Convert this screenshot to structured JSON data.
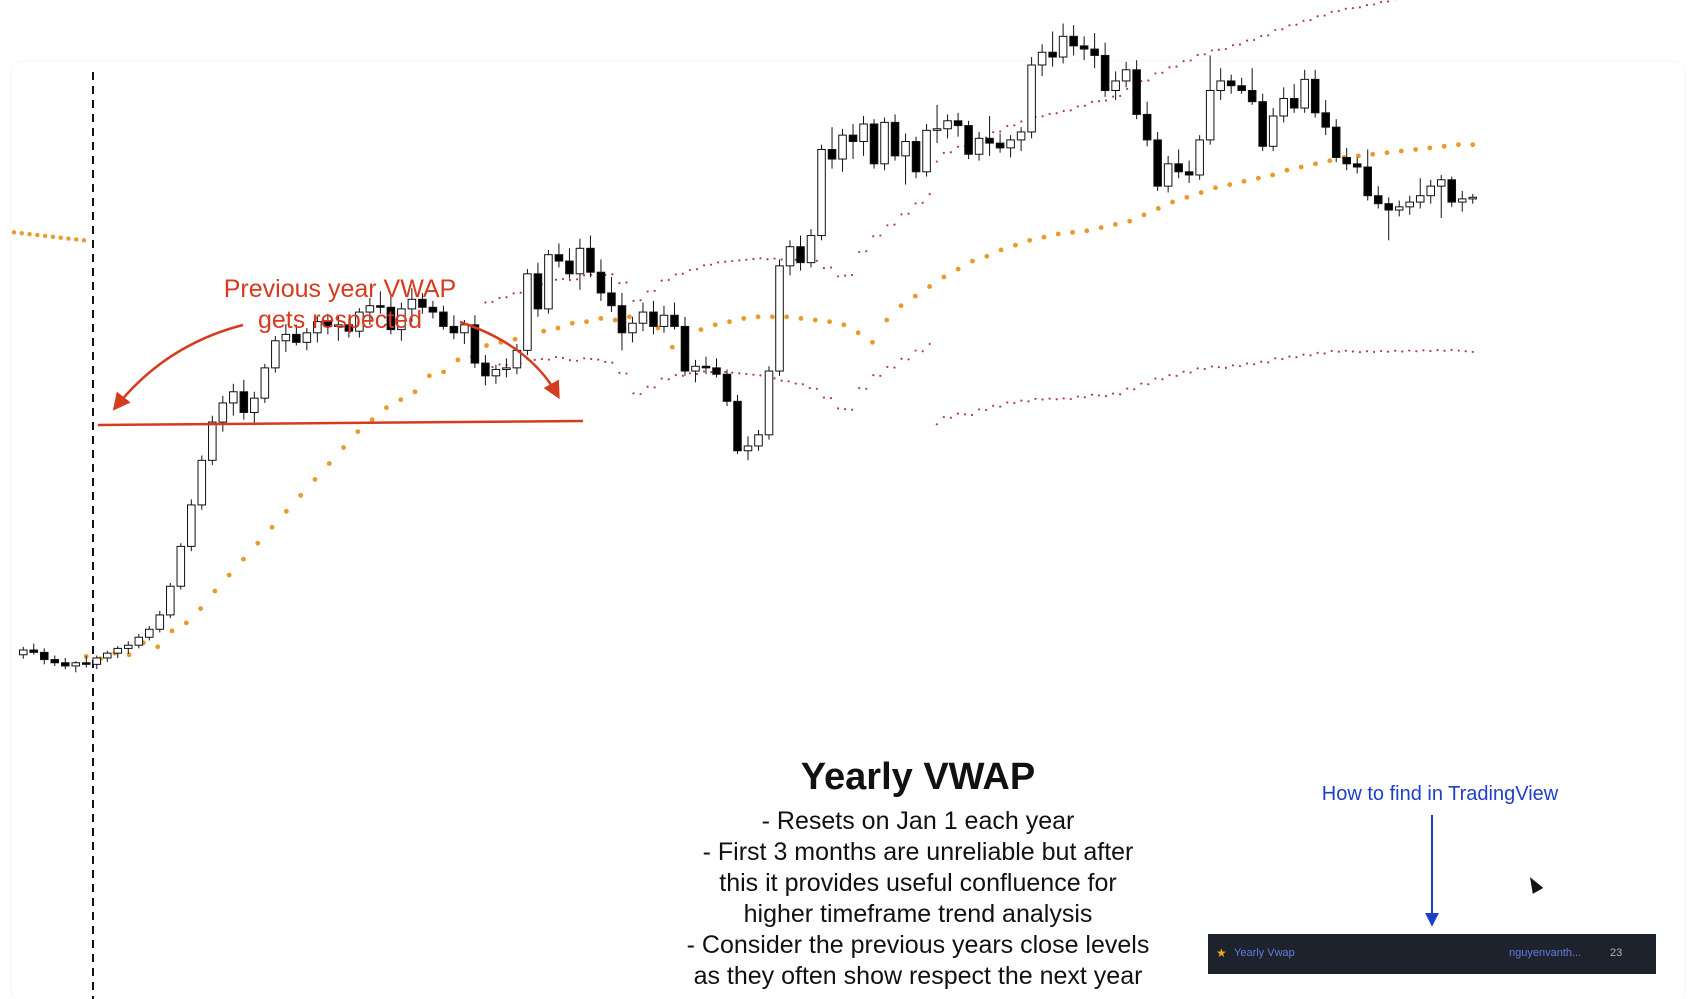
{
  "annotations": {
    "prev_year_line1": "Previous year VWAP",
    "prev_year_line2": "gets respected",
    "title": "Yearly VWAP",
    "notes": [
      "- Resets on Jan 1 each year",
      "- First 3 months are unreliable but after",
      "this it provides useful confluence for",
      "higher timeframe trend analysis",
      "- Consider the previous years close levels",
      "as they often show respect the next year"
    ],
    "howto": "How to find in TradingView"
  },
  "tradingview_bar": {
    "star_icon": "star-icon",
    "indicator": "Yearly Vwap",
    "author": "nguyenvanth...",
    "count": "23"
  },
  "colors": {
    "vwap": "#e89a2c",
    "band": "#b03a4e",
    "annotation_red": "#d63b1f",
    "annotation_blue": "#1f3fc8",
    "candle_up": "#ffffff",
    "candle_down": "#000000",
    "bar_bg": "#1e222d"
  },
  "chart_data": {
    "type": "candlestick",
    "ylim": [
      0,
      100
    ],
    "grid": false,
    "candles": [
      [
        26.0,
        27.0,
        25.5,
        26.6
      ],
      [
        26.6,
        27.4,
        26.0,
        26.3
      ],
      [
        26.3,
        26.8,
        24.8,
        25.4
      ],
      [
        25.4,
        25.9,
        24.6,
        25.0
      ],
      [
        25.0,
        25.6,
        24.2,
        24.6
      ],
      [
        24.6,
        25.2,
        23.8,
        25.0
      ],
      [
        25.0,
        25.8,
        24.4,
        24.8
      ],
      [
        24.8,
        25.9,
        24.2,
        25.6
      ],
      [
        25.6,
        26.5,
        25.1,
        26.2
      ],
      [
        26.2,
        27.1,
        25.6,
        26.8
      ],
      [
        26.8,
        27.7,
        26.1,
        27.2
      ],
      [
        27.2,
        28.6,
        26.8,
        28.2
      ],
      [
        28.2,
        29.6,
        27.8,
        29.2
      ],
      [
        29.2,
        31.5,
        28.8,
        31.0
      ],
      [
        31.0,
        35.0,
        30.6,
        34.6
      ],
      [
        34.6,
        40.0,
        34.2,
        39.6
      ],
      [
        39.6,
        45.5,
        39.0,
        44.8
      ],
      [
        44.8,
        51.0,
        44.2,
        50.4
      ],
      [
        50.4,
        56.0,
        49.8,
        55.2
      ],
      [
        55.2,
        58.5,
        54.0,
        57.6
      ],
      [
        57.6,
        60.0,
        56.0,
        59.0
      ],
      [
        59.0,
        60.5,
        55.5,
        56.4
      ],
      [
        56.4,
        59.0,
        54.8,
        58.2
      ],
      [
        58.2,
        62.5,
        57.6,
        62.0
      ],
      [
        62.0,
        66.0,
        61.4,
        65.4
      ],
      [
        65.4,
        67.5,
        64.0,
        66.2
      ],
      [
        66.2,
        67.4,
        64.8,
        65.2
      ],
      [
        65.2,
        67.0,
        64.2,
        66.4
      ],
      [
        66.4,
        68.5,
        65.2,
        67.8
      ],
      [
        67.8,
        68.8,
        66.2,
        67.2
      ],
      [
        67.2,
        68.6,
        65.4,
        67.4
      ],
      [
        67.4,
        68.2,
        65.8,
        66.6
      ],
      [
        66.6,
        69.5,
        65.8,
        69.0
      ],
      [
        69.0,
        70.8,
        67.4,
        69.8
      ],
      [
        69.8,
        71.6,
        68.8,
        69.6
      ],
      [
        69.6,
        71.0,
        66.2,
        66.8
      ],
      [
        66.8,
        70.2,
        65.4,
        69.4
      ],
      [
        69.4,
        72.0,
        67.8,
        70.6
      ],
      [
        70.6,
        71.4,
        68.8,
        69.6
      ],
      [
        69.6,
        70.4,
        68.2,
        69.0
      ],
      [
        69.0,
        69.8,
        66.8,
        67.2
      ],
      [
        67.2,
        68.6,
        65.6,
        66.4
      ],
      [
        66.4,
        68.0,
        65.0,
        67.4
      ],
      [
        67.4,
        68.6,
        62.0,
        62.6
      ],
      [
        62.6,
        63.6,
        59.8,
        61.0
      ],
      [
        61.0,
        62.4,
        60.0,
        61.8
      ],
      [
        61.8,
        63.2,
        60.8,
        62.0
      ],
      [
        62.0,
        65.0,
        61.2,
        64.2
      ],
      [
        64.2,
        74.4,
        63.6,
        73.8
      ],
      [
        73.8,
        75.2,
        68.4,
        69.4
      ],
      [
        69.4,
        76.8,
        68.8,
        76.2
      ],
      [
        76.2,
        77.6,
        74.6,
        75.4
      ],
      [
        75.4,
        77.0,
        73.2,
        73.8
      ],
      [
        73.8,
        78.2,
        71.8,
        77.0
      ],
      [
        77.0,
        78.6,
        73.4,
        74.0
      ],
      [
        74.0,
        75.6,
        70.4,
        71.4
      ],
      [
        71.4,
        73.4,
        69.0,
        69.8
      ],
      [
        69.8,
        71.4,
        64.2,
        66.4
      ],
      [
        66.4,
        68.4,
        65.2,
        67.6
      ],
      [
        67.6,
        70.2,
        66.6,
        69.0
      ],
      [
        69.0,
        70.4,
        66.2,
        67.2
      ],
      [
        67.2,
        69.8,
        66.4,
        68.6
      ],
      [
        68.6,
        70.2,
        66.8,
        67.2
      ],
      [
        67.2,
        68.4,
        61.0,
        61.6
      ],
      [
        61.6,
        63.0,
        60.2,
        62.2
      ],
      [
        62.2,
        63.4,
        61.2,
        62.0
      ],
      [
        62.0,
        63.2,
        60.8,
        61.2
      ],
      [
        61.2,
        61.8,
        57.2,
        57.8
      ],
      [
        57.8,
        58.6,
        51.2,
        51.6
      ],
      [
        51.6,
        53.4,
        50.4,
        52.2
      ],
      [
        52.2,
        54.2,
        51.6,
        53.6
      ],
      [
        53.6,
        62.2,
        53.0,
        61.6
      ],
      [
        61.6,
        75.6,
        61.0,
        74.8
      ],
      [
        74.8,
        78.0,
        73.6,
        77.2
      ],
      [
        77.2,
        78.6,
        74.2,
        75.2
      ],
      [
        75.2,
        79.4,
        74.6,
        78.6
      ],
      [
        78.6,
        90.0,
        78.0,
        89.4
      ],
      [
        89.4,
        92.2,
        87.0,
        88.2
      ],
      [
        88.2,
        92.0,
        86.6,
        91.2
      ],
      [
        91.2,
        92.6,
        88.2,
        90.4
      ],
      [
        90.4,
        93.6,
        88.6,
        92.6
      ],
      [
        92.6,
        93.2,
        87.0,
        87.6
      ],
      [
        87.6,
        93.4,
        86.8,
        92.8
      ],
      [
        92.8,
        93.8,
        88.0,
        88.6
      ],
      [
        88.6,
        91.4,
        85.0,
        90.4
      ],
      [
        90.4,
        91.0,
        85.8,
        86.6
      ],
      [
        86.6,
        92.6,
        86.0,
        91.8
      ],
      [
        91.8,
        95.0,
        90.2,
        92.0
      ],
      [
        92.0,
        93.8,
        90.8,
        93.0
      ],
      [
        93.0,
        94.0,
        91.0,
        92.4
      ],
      [
        92.4,
        93.0,
        88.2,
        88.8
      ],
      [
        88.8,
        91.6,
        88.0,
        90.8
      ],
      [
        90.8,
        93.6,
        88.6,
        90.2
      ],
      [
        90.2,
        91.4,
        89.0,
        89.6
      ],
      [
        89.6,
        91.2,
        88.4,
        90.6
      ],
      [
        90.6,
        92.2,
        89.2,
        91.6
      ],
      [
        91.6,
        101.0,
        90.8,
        100.0
      ],
      [
        100.0,
        102.6,
        98.6,
        101.6
      ],
      [
        101.6,
        104.2,
        99.8,
        101.0
      ],
      [
        101.0,
        105.2,
        100.2,
        103.6
      ],
      [
        103.6,
        105.0,
        101.2,
        102.4
      ],
      [
        102.4,
        103.6,
        100.6,
        102.0
      ],
      [
        102.0,
        104.0,
        99.6,
        101.2
      ],
      [
        101.2,
        102.8,
        96.0,
        96.8
      ],
      [
        96.8,
        99.2,
        95.6,
        98.0
      ],
      [
        98.0,
        100.4,
        97.2,
        99.4
      ],
      [
        99.4,
        100.6,
        93.2,
        93.8
      ],
      [
        93.8,
        95.4,
        89.8,
        90.6
      ],
      [
        90.6,
        91.6,
        84.2,
        84.8
      ],
      [
        84.8,
        88.6,
        84.0,
        87.6
      ],
      [
        87.6,
        89.4,
        85.8,
        86.6
      ],
      [
        86.6,
        88.0,
        85.2,
        86.2
      ],
      [
        86.2,
        91.2,
        85.6,
        90.6
      ],
      [
        90.6,
        101.2,
        90.0,
        96.8
      ],
      [
        96.8,
        99.6,
        95.6,
        98.0
      ],
      [
        98.0,
        98.8,
        96.4,
        97.4
      ],
      [
        97.4,
        98.4,
        96.4,
        96.8
      ],
      [
        96.8,
        99.6,
        95.0,
        95.4
      ],
      [
        95.4,
        96.4,
        89.2,
        89.8
      ],
      [
        89.8,
        94.6,
        89.2,
        93.6
      ],
      [
        93.6,
        97.2,
        92.8,
        95.8
      ],
      [
        95.8,
        97.6,
        94.0,
        94.6
      ],
      [
        94.6,
        99.4,
        94.0,
        98.2
      ],
      [
        98.2,
        99.4,
        93.4,
        94.0
      ],
      [
        94.0,
        95.6,
        91.2,
        92.2
      ],
      [
        92.2,
        93.2,
        87.8,
        88.4
      ],
      [
        88.4,
        89.6,
        86.8,
        87.6
      ],
      [
        87.6,
        88.4,
        86.4,
        87.2
      ],
      [
        87.2,
        89.4,
        83.0,
        83.6
      ],
      [
        83.6,
        84.8,
        82.0,
        82.6
      ],
      [
        82.6,
        83.4,
        78.0,
        81.8
      ],
      [
        81.8,
        83.0,
        81.0,
        82.2
      ],
      [
        82.2,
        83.6,
        81.2,
        82.8
      ],
      [
        82.8,
        85.8,
        82.0,
        83.6
      ],
      [
        83.6,
        85.6,
        82.6,
        84.8
      ],
      [
        84.8,
        86.2,
        80.8,
        85.6
      ],
      [
        85.6,
        86.0,
        82.2,
        82.8
      ],
      [
        82.8,
        84.2,
        81.6,
        83.2
      ],
      [
        83.2,
        83.8,
        82.6,
        83.4
      ]
    ],
    "vwap_current": [
      [
        25.8,
        25.5
      ],
      [
        26.2,
        26.0
      ],
      [
        27.5,
        27.0
      ],
      [
        29.0,
        30.0
      ],
      [
        31.8,
        34.0
      ],
      [
        36.0,
        38.0
      ],
      [
        40.0,
        42.0
      ],
      [
        44.0,
        46.0
      ],
      [
        48.0,
        50.0
      ],
      [
        52.0,
        54.0
      ],
      [
        55.5,
        57.0
      ],
      [
        58.0,
        59.0
      ],
      [
        61.0,
        61.5
      ],
      [
        63.0,
        63.4
      ],
      [
        64.8,
        65.2
      ],
      [
        65.6,
        66.2
      ],
      [
        66.6,
        67.0
      ],
      [
        67.6,
        67.8
      ],
      [
        68.2,
        68.0
      ],
      [
        68.4,
        68.2
      ],
      [
        67.0,
        64.6
      ],
      [
        65.6,
        66.8
      ],
      [
        67.4,
        67.8
      ],
      [
        68.2,
        68.4
      ],
      [
        68.4,
        68.4
      ],
      [
        68.2,
        68.0
      ],
      [
        67.8,
        67.4
      ],
      [
        66.4,
        65.2
      ],
      [
        68.0,
        69.8
      ],
      [
        71.0,
        72.2
      ],
      [
        73.4,
        74.4
      ],
      [
        75.4,
        76.0
      ],
      [
        76.8,
        77.4
      ],
      [
        78.0,
        78.4
      ],
      [
        78.8,
        79.0
      ],
      [
        79.2,
        79.6
      ],
      [
        80.0,
        80.4
      ],
      [
        81.2,
        82.0
      ],
      [
        82.8,
        83.4
      ],
      [
        84.0,
        84.6
      ],
      [
        85.0,
        85.4
      ],
      [
        85.8,
        86.2
      ],
      [
        86.8,
        87.2
      ],
      [
        87.6,
        88.0
      ],
      [
        88.4,
        88.6
      ],
      [
        88.8,
        89.0
      ],
      [
        89.2,
        89.4
      ],
      [
        89.6,
        89.8
      ],
      [
        90.0,
        90.0
      ]
    ],
    "vwap_previous": [
      [
        79.0,
        78.0
      ]
    ]
  }
}
